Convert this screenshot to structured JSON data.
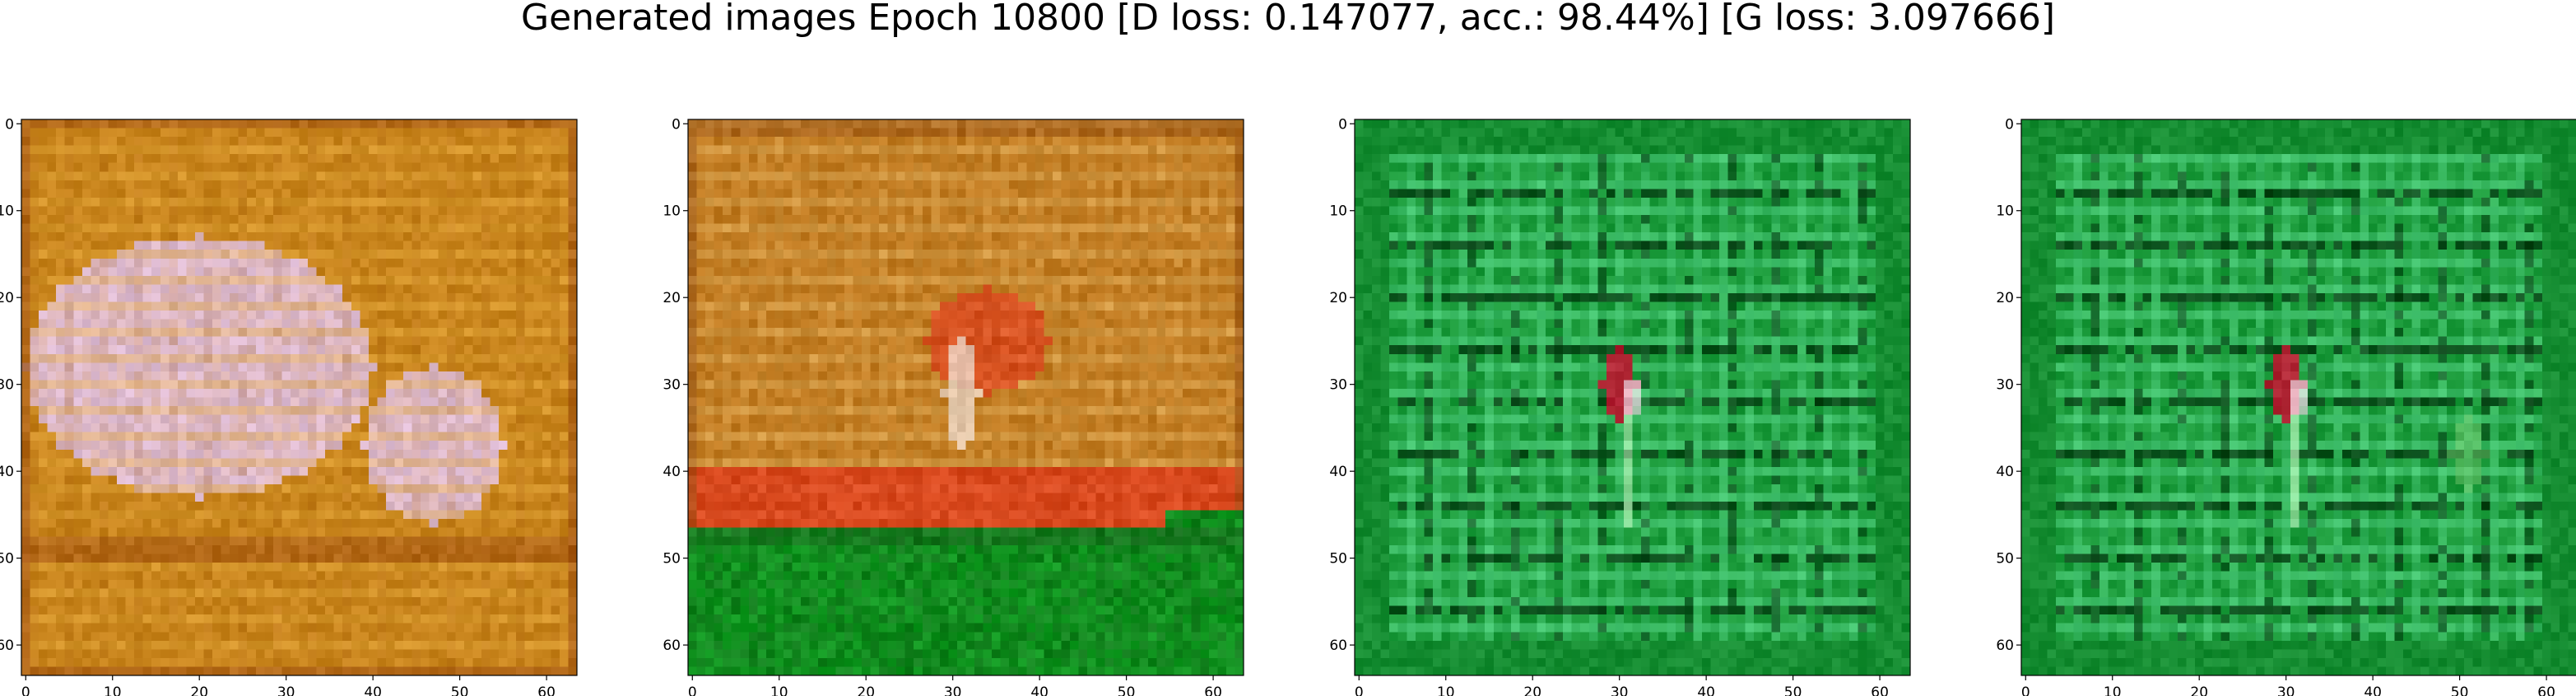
{
  "figure": {
    "title": "Generated images Epoch 10800 [D loss: 0.147077, acc.: 98.44%] [G loss: 3.097666]"
  },
  "chart_data": [
    {
      "type": "heatmap",
      "title": "",
      "xlabel": "",
      "ylabel": "",
      "xlim": [
        -0.5,
        63.5
      ],
      "ylim": [
        63.5,
        -0.5
      ],
      "xticks": [
        0,
        10,
        20,
        30,
        40,
        50,
        60
      ],
      "yticks": [
        0,
        10,
        20,
        30,
        40,
        50,
        60
      ],
      "xtick_labels": [
        "0",
        "10",
        "20",
        "30",
        "40",
        "50",
        "60"
      ],
      "ytick_labels": [
        "0",
        "10",
        "20",
        "30",
        "40",
        "50",
        "60"
      ],
      "grid": false,
      "content": "generated 64x64 RGB image",
      "palette": {
        "base": "#c8841c",
        "light": "#e0c0e0",
        "stripe": "#e8b040",
        "dark": "#a05010"
      }
    },
    {
      "type": "heatmap",
      "title": "",
      "xlabel": "",
      "ylabel": "",
      "xlim": [
        -0.5,
        63.5
      ],
      "ylim": [
        63.5,
        -0.5
      ],
      "xticks": [
        0,
        10,
        20,
        30,
        40,
        50,
        60
      ],
      "yticks": [
        0,
        10,
        20,
        30,
        40,
        50,
        60
      ],
      "xtick_labels": [
        "0",
        "10",
        "20",
        "30",
        "40",
        "50",
        "60"
      ],
      "ytick_labels": [
        "0",
        "10",
        "20",
        "30",
        "40",
        "50",
        "60"
      ],
      "grid": false,
      "content": "generated 64x64 RGB image",
      "palette": {
        "base": "#c07a20",
        "red": "#e03018",
        "green": "#109a20",
        "light": "#e8c070"
      }
    },
    {
      "type": "heatmap",
      "title": "",
      "xlabel": "",
      "ylabel": "",
      "xlim": [
        -0.5,
        63.5
      ],
      "ylim": [
        63.5,
        -0.5
      ],
      "xticks": [
        0,
        10,
        20,
        30,
        40,
        50,
        60
      ],
      "yticks": [
        0,
        10,
        20,
        30,
        40,
        50,
        60
      ],
      "xtick_labels": [
        "0",
        "10",
        "20",
        "30",
        "40",
        "50",
        "60"
      ],
      "ytick_labels": [
        "0",
        "10",
        "20",
        "30",
        "40",
        "50",
        "60"
      ],
      "grid": false,
      "content": "generated 64x64 RGB image",
      "palette": {
        "base": "#1a9a3a",
        "light": "#50d080",
        "dark": "#063a12",
        "red": "#c81030"
      }
    },
    {
      "type": "heatmap",
      "title": "",
      "xlabel": "",
      "ylabel": "",
      "xlim": [
        -0.5,
        63.5
      ],
      "ylim": [
        63.5,
        -0.5
      ],
      "xticks": [
        0,
        10,
        20,
        30,
        40,
        50,
        60
      ],
      "yticks": [
        0,
        10,
        20,
        30,
        40,
        50,
        60
      ],
      "xtick_labels": [
        "0",
        "10",
        "20",
        "30",
        "40",
        "50",
        "60"
      ],
      "ytick_labels": [
        "0",
        "10",
        "20",
        "30",
        "40",
        "50",
        "60"
      ],
      "grid": false,
      "content": "generated 64x64 RGB image",
      "palette": {
        "base": "#1a9a3a",
        "light": "#50d080",
        "dark": "#063a12",
        "red": "#c81030"
      }
    }
  ]
}
